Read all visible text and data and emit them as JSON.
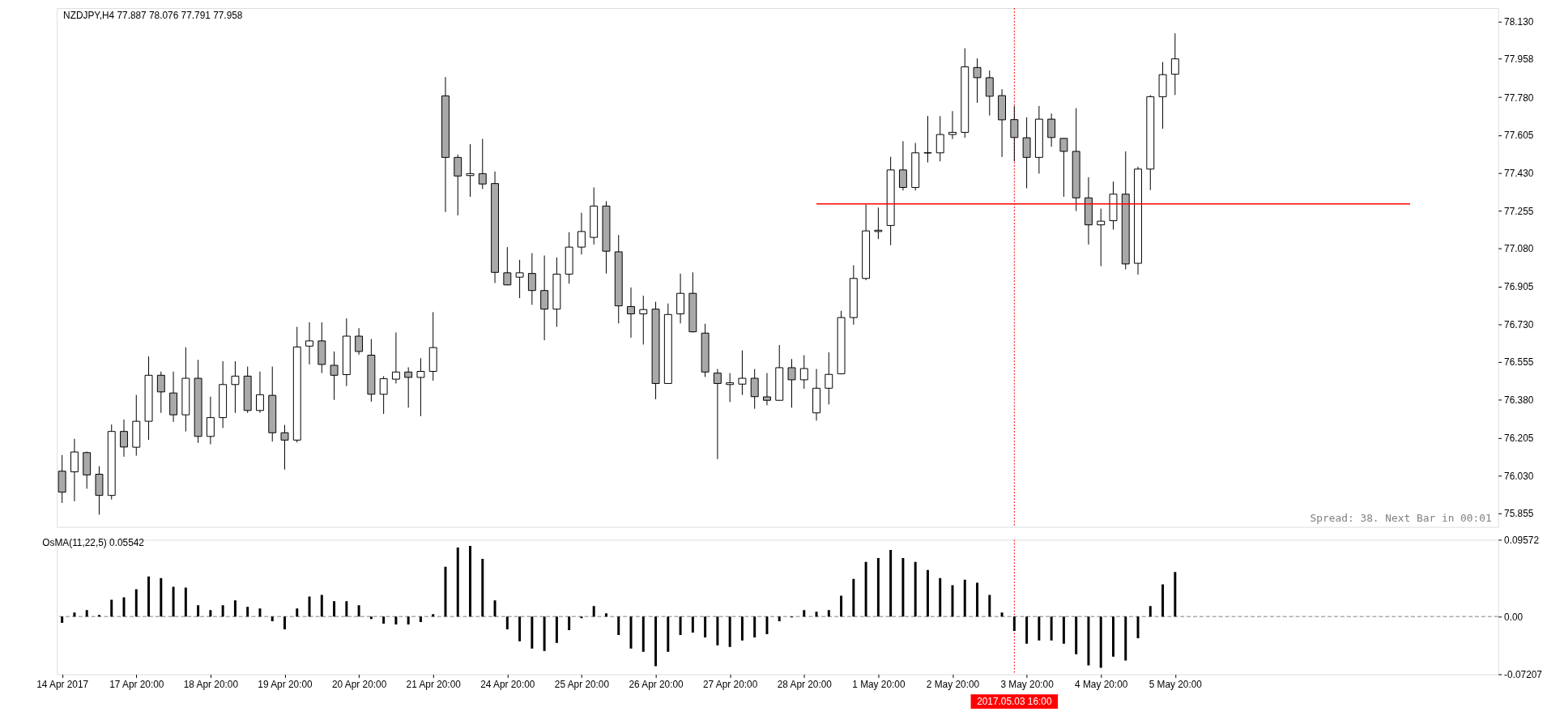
{
  "chart_data": [
    {
      "type": "candlestick",
      "title": "NZDJPY,H4 77.887 78.076 77.791 77.958",
      "categories": [
        "14 Apr 2017",
        null,
        null,
        null,
        null,
        null,
        "17 Apr 20:00",
        null,
        null,
        null,
        null,
        null,
        "18 Apr 20:00",
        null,
        null,
        null,
        null,
        null,
        "19 Apr 20:00",
        null,
        null,
        null,
        null,
        null,
        "20 Apr 20:00",
        null,
        null,
        null,
        null,
        null,
        "21 Apr 20:00",
        null,
        null,
        null,
        null,
        null,
        "24 Apr 20:00",
        null,
        null,
        null,
        null,
        null,
        "25 Apr 20:00",
        null,
        null,
        null,
        null,
        null,
        "26 Apr 20:00",
        null,
        null,
        null,
        null,
        null,
        "27 Apr 20:00",
        null,
        null,
        null,
        null,
        null,
        "28 Apr 20:00",
        null,
        null,
        null,
        null,
        null,
        "1 May 20:00",
        null,
        null,
        null,
        null,
        null,
        "2 May 20:00",
        null,
        null,
        null,
        null,
        "2017.05.03 16:00",
        "3 May 20:00",
        null,
        null,
        null,
        null,
        null,
        "4 May 20:00",
        null,
        null,
        null,
        null,
        null,
        "5 May 20:00",
        null,
        null,
        null,
        null,
        null,
        null,
        null,
        null,
        null,
        null,
        null,
        null,
        null,
        null,
        null,
        null,
        null,
        null,
        null,
        null,
        null,
        null,
        null,
        null,
        null
      ],
      "ohlc": [
        [
          76.05,
          76.125,
          75.903,
          75.953
        ],
        [
          76.047,
          76.2,
          75.911,
          76.139
        ],
        [
          76.136,
          76.141,
          75.969,
          76.033
        ],
        [
          76.036,
          76.073,
          75.849,
          75.938
        ],
        [
          75.938,
          76.266,
          75.919,
          76.234
        ],
        [
          76.234,
          76.289,
          76.117,
          76.162
        ],
        [
          76.161,
          76.403,
          76.122,
          76.281
        ],
        [
          76.281,
          76.581,
          76.195,
          76.494
        ],
        [
          76.494,
          76.511,
          76.32,
          76.417
        ],
        [
          76.412,
          76.511,
          76.278,
          76.311
        ],
        [
          76.311,
          76.623,
          76.234,
          76.48
        ],
        [
          76.48,
          76.565,
          76.181,
          76.211
        ],
        [
          76.211,
          76.395,
          76.175,
          76.298
        ],
        [
          76.298,
          76.559,
          76.25,
          76.451
        ],
        [
          76.451,
          76.559,
          76.32,
          76.49
        ],
        [
          76.49,
          76.534,
          76.32,
          76.331
        ],
        [
          76.331,
          76.511,
          76.32,
          76.404
        ],
        [
          76.401,
          76.534,
          76.187,
          76.228
        ],
        [
          76.228,
          76.264,
          76.058,
          76.194
        ],
        [
          76.194,
          76.718,
          76.183,
          76.625
        ],
        [
          76.629,
          76.739,
          76.544,
          76.653
        ],
        [
          76.653,
          76.739,
          76.504,
          76.544
        ],
        [
          76.54,
          76.604,
          76.38,
          76.494
        ],
        [
          76.497,
          76.757,
          76.444,
          76.675
        ],
        [
          76.675,
          76.712,
          76.589,
          76.604
        ],
        [
          76.587,
          76.662,
          76.372,
          76.406
        ],
        [
          76.406,
          76.49,
          76.315,
          76.478
        ],
        [
          76.476,
          76.692,
          76.456,
          76.509
        ],
        [
          76.509,
          76.531,
          76.344,
          76.484
        ],
        [
          76.484,
          76.573,
          76.305,
          76.512
        ],
        [
          76.512,
          76.786,
          76.469,
          76.622
        ],
        [
          77.787,
          77.874,
          77.249,
          77.502
        ],
        [
          77.502,
          77.515,
          77.234,
          77.416
        ],
        [
          77.418,
          77.563,
          77.32,
          77.427
        ],
        [
          77.427,
          77.588,
          77.356,
          77.379
        ],
        [
          77.381,
          77.437,
          76.921,
          76.97
        ],
        [
          76.968,
          77.087,
          76.91,
          76.912
        ],
        [
          76.948,
          77.028,
          76.851,
          76.968
        ],
        [
          76.965,
          77.059,
          76.82,
          76.886
        ],
        [
          76.886,
          77.048,
          76.656,
          76.8
        ],
        [
          76.8,
          77.039,
          76.718,
          76.962
        ],
        [
          76.962,
          77.156,
          76.918,
          77.087
        ],
        [
          77.087,
          77.246,
          77.053,
          77.159
        ],
        [
          77.132,
          77.363,
          77.099,
          77.277
        ],
        [
          77.277,
          77.299,
          76.965,
          77.068
        ],
        [
          77.065,
          77.143,
          76.734,
          76.815
        ],
        [
          76.812,
          76.9,
          76.668,
          76.778
        ],
        [
          76.778,
          76.862,
          76.636,
          76.798
        ],
        [
          76.8,
          76.834,
          76.383,
          76.456
        ],
        [
          76.456,
          76.826,
          76.456,
          76.775
        ],
        [
          76.778,
          76.964,
          76.734,
          76.873
        ],
        [
          76.873,
          76.97,
          76.692,
          76.695
        ],
        [
          76.689,
          76.732,
          76.486,
          76.509
        ],
        [
          76.504,
          76.523,
          76.106,
          76.456
        ],
        [
          76.451,
          76.504,
          76.37,
          76.459
        ],
        [
          76.453,
          76.609,
          76.403,
          76.48
        ],
        [
          76.48,
          76.523,
          76.339,
          76.395
        ],
        [
          76.394,
          76.504,
          76.355,
          76.378
        ],
        [
          76.378,
          76.634,
          76.378,
          76.529
        ],
        [
          76.529,
          76.569,
          76.344,
          76.473
        ],
        [
          76.473,
          76.587,
          76.431,
          76.525
        ],
        [
          76.32,
          76.523,
          76.284,
          76.434
        ],
        [
          76.434,
          76.6,
          76.359,
          76.498
        ],
        [
          76.501,
          76.792,
          76.498,
          76.761
        ],
        [
          76.761,
          77.003,
          76.728,
          76.942
        ],
        [
          76.942,
          77.284,
          76.934,
          77.162
        ],
        [
          77.159,
          77.27,
          77.124,
          77.165
        ],
        [
          77.187,
          77.505,
          77.096,
          77.444
        ],
        [
          77.444,
          77.577,
          77.349,
          77.363
        ],
        [
          77.363,
          77.569,
          77.349,
          77.523
        ],
        [
          77.522,
          77.694,
          77.479,
          77.524
        ],
        [
          77.523,
          77.693,
          77.484,
          77.608
        ],
        [
          77.608,
          77.716,
          77.587,
          77.618
        ],
        [
          77.618,
          78.007,
          77.593,
          77.921
        ],
        [
          77.918,
          77.96,
          77.755,
          77.871
        ],
        [
          77.871,
          77.904,
          77.696,
          77.785
        ],
        [
          77.788,
          77.818,
          77.504,
          77.676
        ],
        [
          77.677,
          77.74,
          77.484,
          77.594
        ],
        [
          77.593,
          77.687,
          77.359,
          77.502
        ],
        [
          77.502,
          77.74,
          77.427,
          77.679
        ],
        [
          77.679,
          77.705,
          77.551,
          77.594
        ],
        [
          77.59,
          77.59,
          77.32,
          77.53
        ],
        [
          77.53,
          77.73,
          77.254,
          77.315
        ],
        [
          77.315,
          77.41,
          77.099,
          77.19
        ],
        [
          77.19,
          77.265,
          76.999,
          77.207
        ],
        [
          77.209,
          77.39,
          77.168,
          77.332
        ],
        [
          77.332,
          77.53,
          76.984,
          77.009
        ],
        [
          77.012,
          77.459,
          76.96,
          77.448
        ],
        [
          77.448,
          77.79,
          77.351,
          77.783
        ],
        [
          77.783,
          77.943,
          77.635,
          77.885
        ],
        [
          77.887,
          78.076,
          77.791,
          77.958
        ],
        null,
        null,
        null,
        null,
        null,
        null,
        null,
        null,
        null,
        null,
        null,
        null,
        null,
        null,
        null,
        null,
        null,
        null,
        null,
        null,
        null,
        null,
        null,
        null,
        null
      ],
      "color": "#000000",
      "colors": [
        "#a9a9a9",
        "#ffffff",
        "#a9a9a9",
        "#a9a9a9",
        "#ffffff",
        "#a9a9a9",
        "#ffffff",
        "#ffffff",
        "#a9a9a9",
        "#a9a9a9",
        "#ffffff",
        "#a9a9a9",
        "#ffffff",
        "#ffffff",
        "#ffffff",
        "#a9a9a9",
        "#ffffff",
        "#a9a9a9",
        "#a9a9a9",
        "#ffffff",
        "#ffffff",
        "#a9a9a9",
        "#a9a9a9",
        "#ffffff",
        "#a9a9a9",
        "#a9a9a9",
        "#ffffff",
        "#ffffff",
        "#a9a9a9",
        "#ffffff",
        "#ffffff",
        "#a9a9a9",
        "#a9a9a9",
        "#ffffff",
        "#a9a9a9",
        "#a9a9a9",
        "#a9a9a9",
        "#ffffff",
        "#a9a9a9",
        "#a9a9a9",
        "#ffffff",
        "#ffffff",
        "#ffffff",
        "#ffffff",
        "#a9a9a9",
        "#a9a9a9",
        "#a9a9a9",
        "#ffffff",
        "#a9a9a9",
        "#ffffff",
        "#ffffff",
        "#a9a9a9",
        "#a9a9a9",
        "#a9a9a9",
        "#ffffff",
        "#ffffff",
        "#a9a9a9",
        "#a9a9a9",
        "#ffffff",
        "#a9a9a9",
        "#ffffff",
        "#ffffff",
        "#ffffff",
        "#ffffff",
        "#ffffff",
        "#ffffff",
        "#ffffff",
        "#ffffff",
        "#a9a9a9",
        "#ffffff",
        "#ffffff",
        "#ffffff",
        "#ffffff",
        "#ffffff",
        "#a9a9a9",
        "#a9a9a9",
        "#a9a9a9",
        "#a9a9a9",
        "#a9a9a9",
        "#ffffff",
        "#a9a9a9",
        "#a9a9a9",
        "#a9a9a9",
        "#a9a9a9",
        "#ffffff",
        "#ffffff",
        "#a9a9a9",
        "#ffffff",
        "#ffffff",
        "#ffffff",
        "#ffffff",
        null,
        null,
        null,
        null,
        null,
        null,
        null,
        null,
        null,
        null,
        null,
        null,
        null,
        null,
        null,
        null,
        null,
        null,
        null,
        null,
        null,
        null,
        null,
        null,
        null
      ],
      "series": [
        {
          "type": "line",
          "color": "#ff0000",
          "values": [
            null,
            null,
            null,
            null,
            null,
            null,
            null,
            null,
            null,
            null,
            null,
            null,
            null,
            null,
            null,
            null,
            null,
            null,
            null,
            null,
            null,
            null,
            null,
            null,
            null,
            null,
            null,
            null,
            null,
            null,
            null,
            null,
            null,
            null,
            null,
            null,
            null,
            null,
            null,
            null,
            null,
            null,
            null,
            null,
            null,
            null,
            null,
            null,
            null,
            null,
            null,
            null,
            null,
            null,
            null,
            null,
            null,
            null,
            null,
            null,
            null,
            77.287,
            77.287,
            77.287,
            77.287,
            77.287,
            77.287,
            77.287,
            77.287,
            77.287,
            77.287,
            77.287,
            77.287,
            77.287,
            77.287,
            77.287,
            77.287,
            77.287,
            77.287,
            77.287,
            77.287,
            77.287,
            77.287,
            77.287,
            77.287,
            77.287,
            77.287,
            77.287,
            77.287,
            77.287,
            77.287,
            77.287,
            77.287,
            77.287,
            77.287,
            77.287,
            77.287,
            77.287,
            77.287,
            77.287,
            77.287,
            77.287,
            77.287,
            77.287,
            77.287,
            77.287,
            77.287,
            77.287,
            77.287,
            77.287,
            null,
            null,
            null,
            null,
            null,
            null
          ]
        }
      ],
      "ref_lines": [
        {
          "axis": "x",
          "value": "2017.05.03 16:00",
          "color": "#ff0000",
          "line_style": "dotted"
        }
      ],
      "ylim": [
        75.792,
        78.193
      ],
      "yticks": [
        {
          "value": 78.13,
          "label": "78.130"
        },
        77.958,
        {
          "value": 77.78,
          "label": "77.780"
        },
        77.605,
        {
          "value": 77.43,
          "label": "77.430"
        },
        77.255,
        {
          "value": 77.08,
          "label": "77.080"
        },
        76.905,
        {
          "value": 76.73,
          "label": "76.730"
        },
        76.555,
        {
          "value": 76.38,
          "label": "76.380"
        },
        76.205,
        {
          "value": 76.03,
          "label": "76.030"
        },
        75.855
      ],
      "tick_labels": "y",
      "annotations": [
        "Spread: 38. Next Bar in 00:01"
      ]
    },
    {
      "type": "bar",
      "title": "OsMA(11,22,5) 0.05542",
      "categories": [
        "14 Apr 2017",
        null,
        null,
        null,
        null,
        null,
        "17 Apr 20:00",
        null,
        null,
        null,
        null,
        null,
        "18 Apr 20:00",
        null,
        null,
        null,
        null,
        null,
        "19 Apr 20:00",
        null,
        null,
        null,
        null,
        null,
        "20 Apr 20:00",
        null,
        null,
        null,
        null,
        null,
        "21 Apr 20:00",
        null,
        null,
        null,
        null,
        null,
        "24 Apr 20:00",
        null,
        null,
        null,
        null,
        null,
        "25 Apr 20:00",
        null,
        null,
        null,
        null,
        null,
        "26 Apr 20:00",
        null,
        null,
        null,
        null,
        null,
        "27 Apr 20:00",
        null,
        null,
        null,
        null,
        null,
        "28 Apr 20:00",
        null,
        null,
        null,
        null,
        null,
        "1 May 20:00",
        null,
        null,
        null,
        null,
        null,
        "2 May 20:00",
        null,
        null,
        null,
        null,
        "2017.05.03 16:00",
        "3 May 20:00",
        null,
        null,
        null,
        null,
        null,
        "4 May 20:00",
        null,
        null,
        null,
        null,
        null,
        "5 May 20:00",
        null,
        null,
        null,
        null,
        null,
        null,
        null,
        null,
        null,
        null,
        null,
        null,
        null,
        null,
        null,
        null,
        null,
        null,
        null,
        null,
        null,
        null,
        null,
        null,
        null
      ],
      "values": [
        -0.008,
        0.005,
        0.008,
        0.002,
        0.021,
        0.024,
        0.034,
        0.05,
        0.048,
        0.037,
        0.036,
        0.014,
        0.008,
        0.014,
        0.02,
        0.012,
        0.01,
        -0.006,
        -0.016,
        0.01,
        0.025,
        0.027,
        0.019,
        0.019,
        0.014,
        -0.003,
        -0.009,
        -0.01,
        -0.01,
        -0.007,
        0.003,
        0.062,
        0.086,
        0.088,
        0.072,
        0.02,
        -0.016,
        -0.031,
        -0.04,
        -0.043,
        -0.033,
        -0.017,
        -0.002,
        0.013,
        0.004,
        -0.023,
        -0.04,
        -0.044,
        -0.062,
        -0.044,
        -0.023,
        -0.02,
        -0.026,
        -0.036,
        -0.038,
        -0.03,
        -0.026,
        -0.022,
        -0.006,
        -0.001,
        0.008,
        0.006,
        0.008,
        0.026,
        0.047,
        0.068,
        0.073,
        0.083,
        0.073,
        0.068,
        0.058,
        0.048,
        0.039,
        0.046,
        0.042,
        0.027,
        0.005,
        -0.018,
        -0.034,
        -0.03,
        -0.03,
        -0.034,
        -0.047,
        -0.061,
        -0.064,
        -0.05,
        -0.055,
        -0.027,
        0.013,
        0.04,
        0.05542,
        null,
        null,
        null,
        null,
        null,
        null,
        null,
        null,
        null,
        null,
        null,
        null,
        null,
        null,
        null,
        null,
        null,
        null,
        null,
        null,
        null,
        null,
        null,
        null,
        null
      ],
      "color": "#000000",
      "ylim": [
        -0.07207,
        0.09572
      ],
      "yticks": [
        0.09572,
        {
          "value": 0,
          "label": "0.00"
        },
        -0.07207
      ],
      "ref_lines": [
        {
          "axis": "y",
          "value": 0,
          "color": "#808080",
          "line_style": "dashed"
        },
        {
          "axis": "x",
          "value": "2017.05.03 16:00",
          "color": "#ff0000",
          "line_style": "dotted"
        }
      ]
    }
  ]
}
